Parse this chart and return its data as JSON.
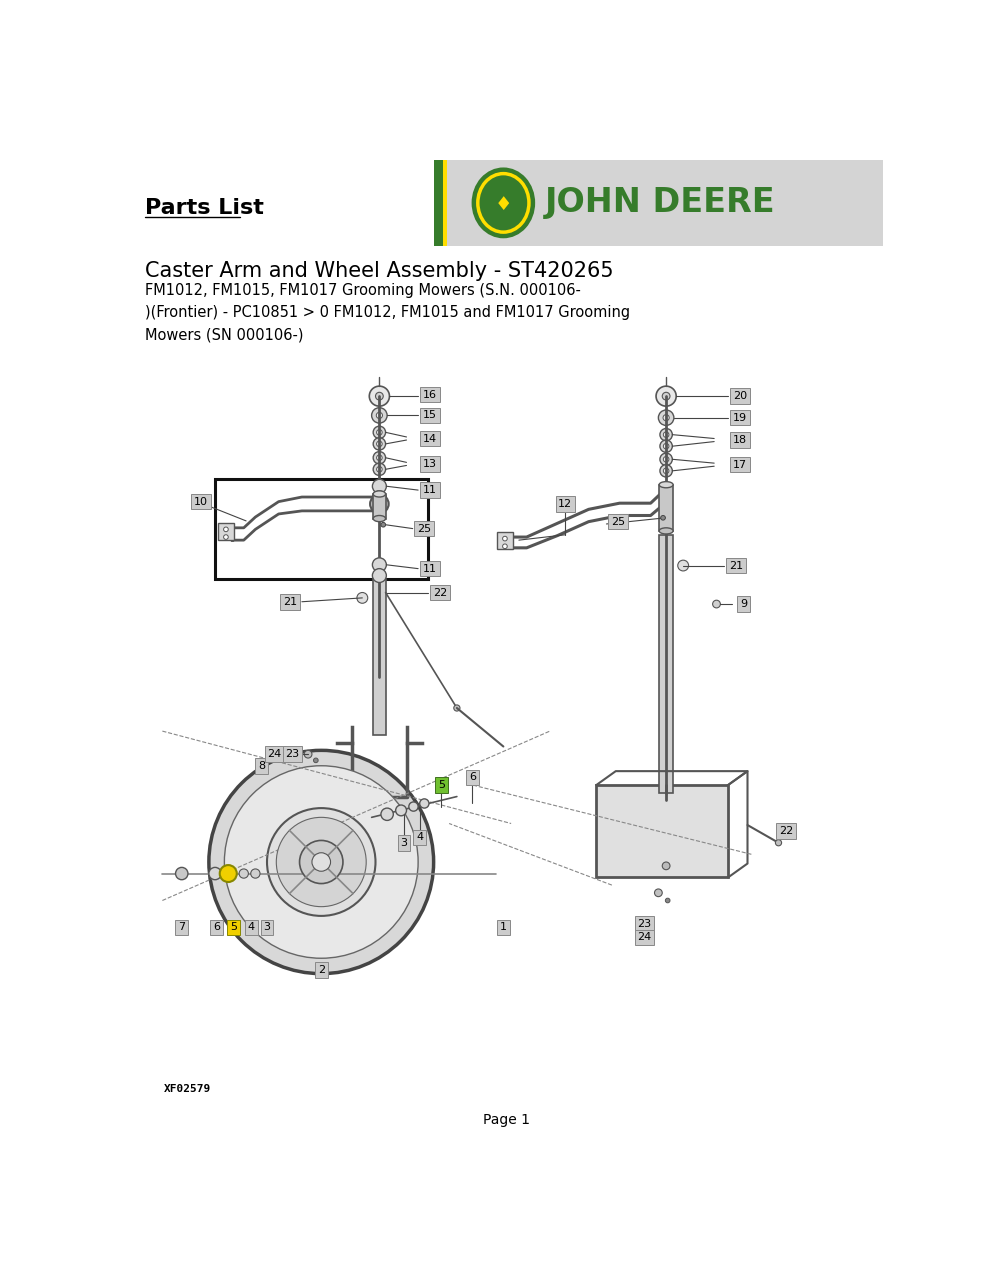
{
  "title": "Parts List",
  "assembly_title": "Caster Arm and Wheel Assembly - ST420265",
  "subtitle": "FM1012, FM1015, FM1017 Grooming Mowers (S.N. 000106-\n)(Frontier) - PC10851 > 0 FM1012, FM1015 and FM1017 Grooming\nMowers (SN 000106-)",
  "part_number": "XF02579",
  "page": "Page 1",
  "bg_color": "#ffffff",
  "header_bg": "#d4d4d4",
  "jd_green": "#367c2b",
  "jd_yellow": "#ffde00",
  "label_bg": "#cccccc",
  "text_color": "#000000",
  "line_color": "#444444",
  "part_line_color": "#555555"
}
